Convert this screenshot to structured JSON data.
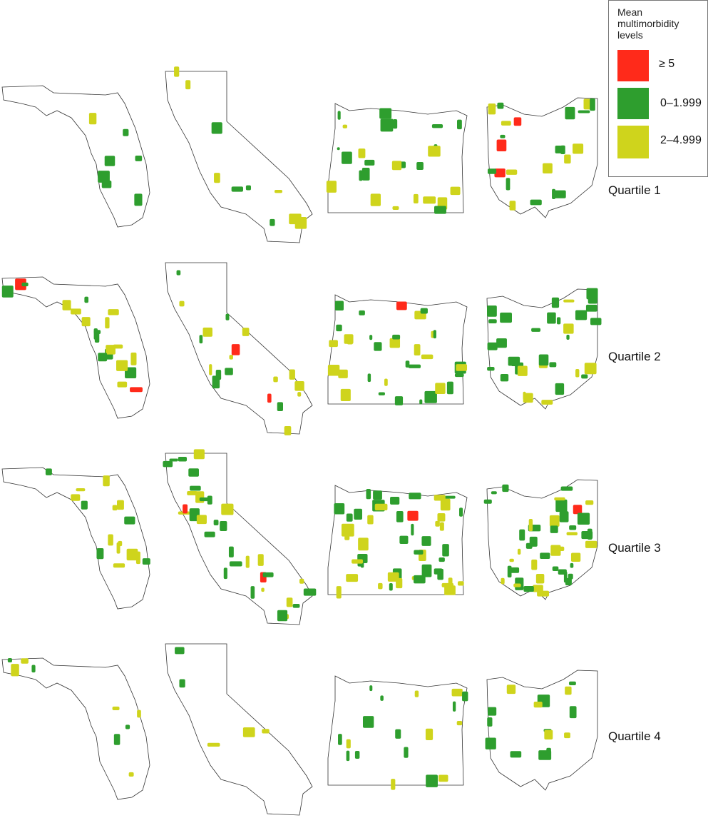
{
  "legend": {
    "title": "Mean multimorbidity levels",
    "items": [
      {
        "label": "≥ 5",
        "color": "#ff2a1a"
      },
      {
        "label": "0–1.999",
        "color": "#2e9e2e"
      },
      {
        "label": "2–4.999",
        "color": "#cfd41c"
      }
    ]
  },
  "rows": [
    {
      "label": "Quartile 1"
    },
    {
      "label": "Quartile 2"
    },
    {
      "label": "Quartile 3"
    },
    {
      "label": "Quartile 4"
    }
  ]
}
